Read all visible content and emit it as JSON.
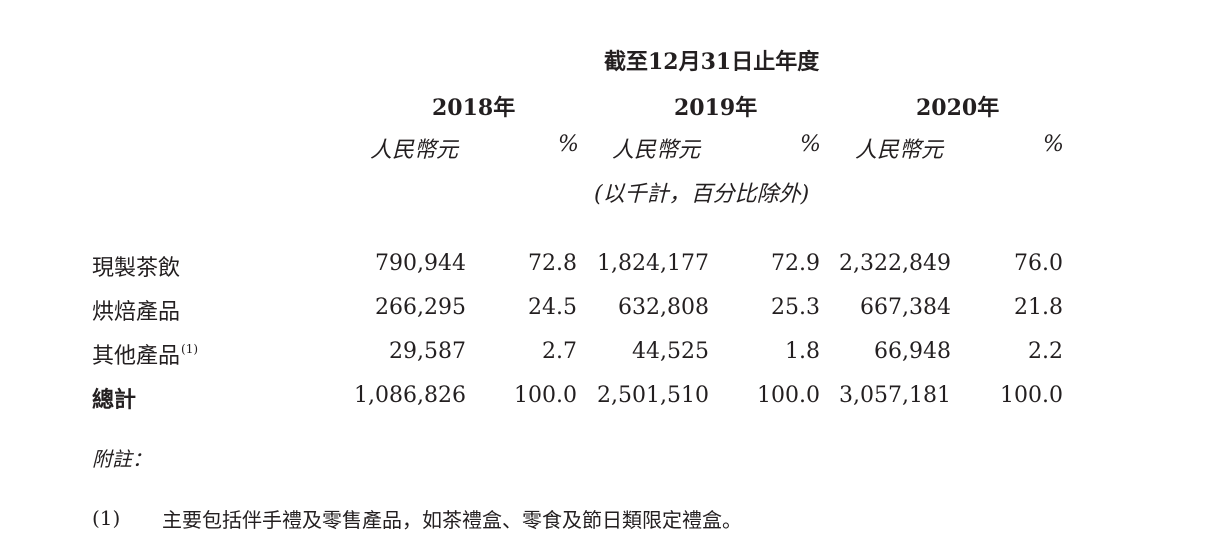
{
  "header": {
    "period": "截至12月31日止年度",
    "years": [
      "2018年",
      "2019年",
      "2020年"
    ],
    "currency_label": "人民幣元",
    "percent_label": "%",
    "unit_note": "(以千計，百分比除外)"
  },
  "rows": [
    {
      "label": "現製茶飲",
      "footnote": "",
      "values": [
        "790,944",
        "72.8",
        "1,824,177",
        "72.9",
        "2,322,849",
        "76.0"
      ]
    },
    {
      "label": "烘焙產品",
      "footnote": "",
      "values": [
        "266,295",
        "24.5",
        "632,808",
        "25.3",
        "667,384",
        "21.8"
      ]
    },
    {
      "label": "其他產品",
      "footnote": "(1)",
      "values": [
        "29,587",
        "2.7",
        "44,525",
        "1.8",
        "66,948",
        "2.2"
      ]
    },
    {
      "label": "總計",
      "footnote": "",
      "values": [
        "1,086,826",
        "100.0",
        "2,501,510",
        "100.0",
        "3,057,181",
        "100.0"
      ]
    }
  ],
  "notes": {
    "heading": "附註：",
    "items": [
      {
        "marker": "(1)",
        "text": "主要包括伴手禮及零售產品，如茶禮盒、零食及節日類限定禮盒。"
      }
    ]
  }
}
